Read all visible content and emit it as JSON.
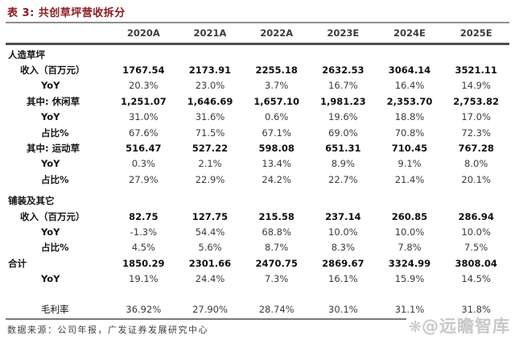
{
  "title": "表 3: 共创草坪营收拆分",
  "columns": [
    "2020A",
    "2021A",
    "2022A",
    "2023E",
    "2024E",
    "2025E"
  ],
  "rows": [
    {
      "label": "人造草坪",
      "section": true,
      "indent": 0,
      "values": [
        "",
        "",
        "",
        "",
        "",
        ""
      ]
    },
    {
      "label": "收入（百万元）",
      "indent": 1,
      "bold_values": true,
      "values": [
        "1767.54",
        "2173.91",
        "2255.18",
        "2632.53",
        "3064.14",
        "3521.11"
      ]
    },
    {
      "label": "YoY",
      "indent": 3,
      "bold_values": false,
      "values": [
        "20.3%",
        "23.0%",
        "3.7%",
        "16.7%",
        "16.4%",
        "14.9%"
      ]
    },
    {
      "label": "其中: 休闲草",
      "indent": 2,
      "bold_values": true,
      "values": [
        "1,251.07",
        "1,646.69",
        "1,657.10",
        "1,981.23",
        "2,353.70",
        "2,753.82"
      ]
    },
    {
      "label": "YoY",
      "indent": 3,
      "bold_values": false,
      "values": [
        "31.0%",
        "31.6%",
        "0.6%",
        "19.6%",
        "18.8%",
        "17.0%"
      ]
    },
    {
      "label": "占比%",
      "indent": 3,
      "bold_values": false,
      "values": [
        "67.6%",
        "71.5%",
        "67.1%",
        "69.0%",
        "70.8%",
        "72.3%"
      ]
    },
    {
      "label": "其中: 运动草",
      "indent": 2,
      "bold_values": true,
      "values": [
        "516.47",
        "527.22",
        "598.08",
        "651.31",
        "710.45",
        "767.28"
      ]
    },
    {
      "label": "YoY",
      "indent": 3,
      "bold_values": false,
      "values": [
        "0.3%",
        "2.1%",
        "13.4%",
        "8.9%",
        "9.1%",
        "8.0%"
      ]
    },
    {
      "label": "占比%",
      "indent": 3,
      "bold_values": false,
      "values": [
        "27.9%",
        "22.9%",
        "24.2%",
        "22.7%",
        "21.4%",
        "20.1%"
      ]
    },
    {
      "label": "铺装及其它",
      "section": true,
      "indent": 0,
      "gap": "small",
      "values": [
        "",
        "",
        "",
        "",
        "",
        ""
      ]
    },
    {
      "label": "收入（百万元）",
      "indent": 1,
      "bold_values": true,
      "values": [
        "82.75",
        "127.75",
        "215.58",
        "237.14",
        "260.85",
        "286.94"
      ]
    },
    {
      "label": "YoY",
      "indent": 3,
      "bold_values": false,
      "values": [
        "-1.3%",
        "54.4%",
        "68.8%",
        "10.0%",
        "10.0%",
        "10.0%"
      ]
    },
    {
      "label": "占比%",
      "indent": 3,
      "bold_values": false,
      "values": [
        "4.5%",
        "5.6%",
        "8.7%",
        "8.3%",
        "7.8%",
        "7.5%"
      ]
    },
    {
      "label": "合计",
      "section": true,
      "indent": 0,
      "bold_values": true,
      "values": [
        "1850.29",
        "2301.66",
        "2470.75",
        "2869.67",
        "3324.99",
        "3808.04"
      ]
    },
    {
      "label": "YoY",
      "indent": 3,
      "bold_values": false,
      "values": [
        "19.1%",
        "24.4%",
        "7.3%",
        "16.1%",
        "15.9%",
        "14.5%"
      ]
    },
    {
      "label": "毛利率",
      "indent": 3,
      "plain_label": true,
      "gap": "large",
      "bold_values": false,
      "values": [
        "36.92%",
        "27.90%",
        "28.74%",
        "30.1%",
        "31.1%",
        "31.8%"
      ]
    }
  ],
  "footer": {
    "source": "数据来源：公司年报，广发证券发展研究中心"
  },
  "watermark": {
    "logo_glyph": "❋",
    "text": "@远瞻智库"
  },
  "colors": {
    "title_red": "#8b1a1a",
    "header_rule_dark": "#4d4d4d",
    "title_rule_gray": "#8f8f8f",
    "watermark_gray": "#c8c8c8"
  }
}
